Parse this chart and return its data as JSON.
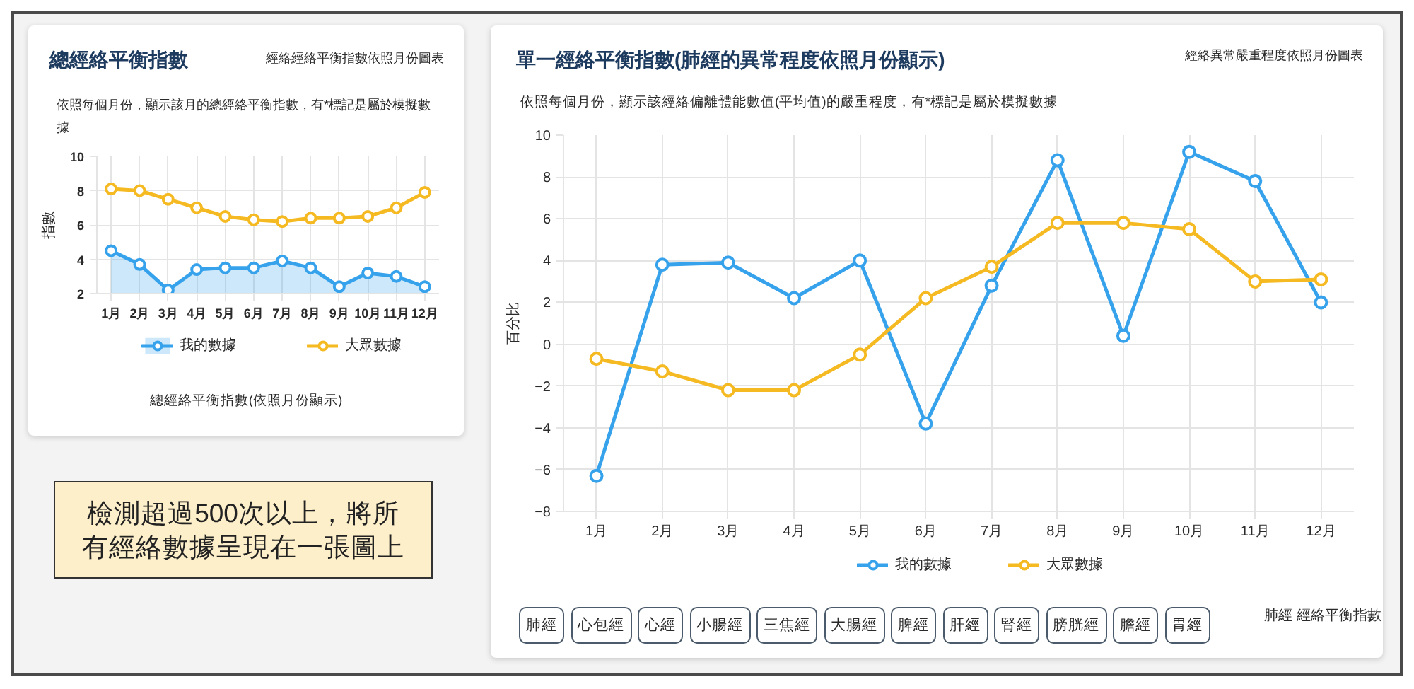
{
  "chart_data": [
    {
      "type": "line",
      "title": "總經絡平衡指數",
      "subtitle": "依照每個月份，顯示該月的總經絡平衡指數，有*標記是屬於模擬數據",
      "ylabel": "指數",
      "annotations": [
        "經絡經絡平衡指數依照月份圖表",
        "總經絡平衡指數(依照月份顯示)"
      ],
      "categories": [
        "1月",
        "2月",
        "3月",
        "4月",
        "5月",
        "6月",
        "7月",
        "8月",
        "9月",
        "10月",
        "11月",
        "12月"
      ],
      "series": [
        {
          "name": "我的數據",
          "type": "area",
          "color": "#36a2eb",
          "values": [
            4.5,
            3.7,
            2.2,
            3.4,
            3.5,
            3.5,
            3.9,
            3.5,
            2.4,
            3.2,
            3.0,
            2.4
          ]
        },
        {
          "name": "大眾數據",
          "type": "line",
          "color": "#f5b921",
          "values": [
            8.1,
            8.0,
            7.5,
            7.0,
            6.5,
            6.3,
            6.2,
            6.4,
            6.4,
            6.5,
            7.0,
            7.9
          ]
        }
      ],
      "ylim": [
        2,
        10
      ],
      "yticks": [
        2,
        4,
        6,
        8,
        10
      ],
      "grid": true,
      "legend": "bottom",
      "marker": "circle"
    },
    {
      "type": "line",
      "title": "單一經絡平衡指數(肺經的異常程度依照月份顯示)",
      "subtitle": "依照每個月份，顯示該經絡偏離體能數值(平均值)的嚴重程度，有*標記是屬於模擬數據",
      "ylabel": "百分比",
      "annotations": [
        "經絡異常嚴重程度依照月份圖表",
        "肺經",
        "心包經",
        "心經",
        "小腸經",
        "三焦經",
        "大腸經",
        "脾經",
        "肝經",
        "腎經",
        "膀胱經",
        "膽經",
        "胃經",
        "肺經 經絡平衡指數"
      ],
      "categories": [
        "1月",
        "2月",
        "3月",
        "4月",
        "5月",
        "6月",
        "7月",
        "8月",
        "9月",
        "10月",
        "11月",
        "12月"
      ],
      "series": [
        {
          "name": "我的數據",
          "color": "#36a2eb",
          "values": [
            -6.3,
            3.8,
            3.9,
            2.2,
            4.0,
            -3.8,
            2.8,
            8.8,
            0.4,
            9.2,
            7.8,
            2.0
          ]
        },
        {
          "name": "大眾數據",
          "color": "#f5b921",
          "values": [
            -0.7,
            -1.3,
            -2.2,
            -2.2,
            -0.5,
            2.2,
            3.7,
            5.8,
            5.8,
            5.5,
            3.0,
            3.1
          ]
        }
      ],
      "ylim": [
        -8,
        10
      ],
      "yticks": [
        -8,
        -6,
        -4,
        -2,
        0,
        2,
        4,
        6,
        8,
        10
      ],
      "grid": true,
      "legend": "bottom",
      "marker": "circle"
    },
    {
      "type": "other",
      "annotations": [
        "檢測超過500次以上，將所有經絡數據呈現在一張圖上"
      ]
    }
  ]
}
